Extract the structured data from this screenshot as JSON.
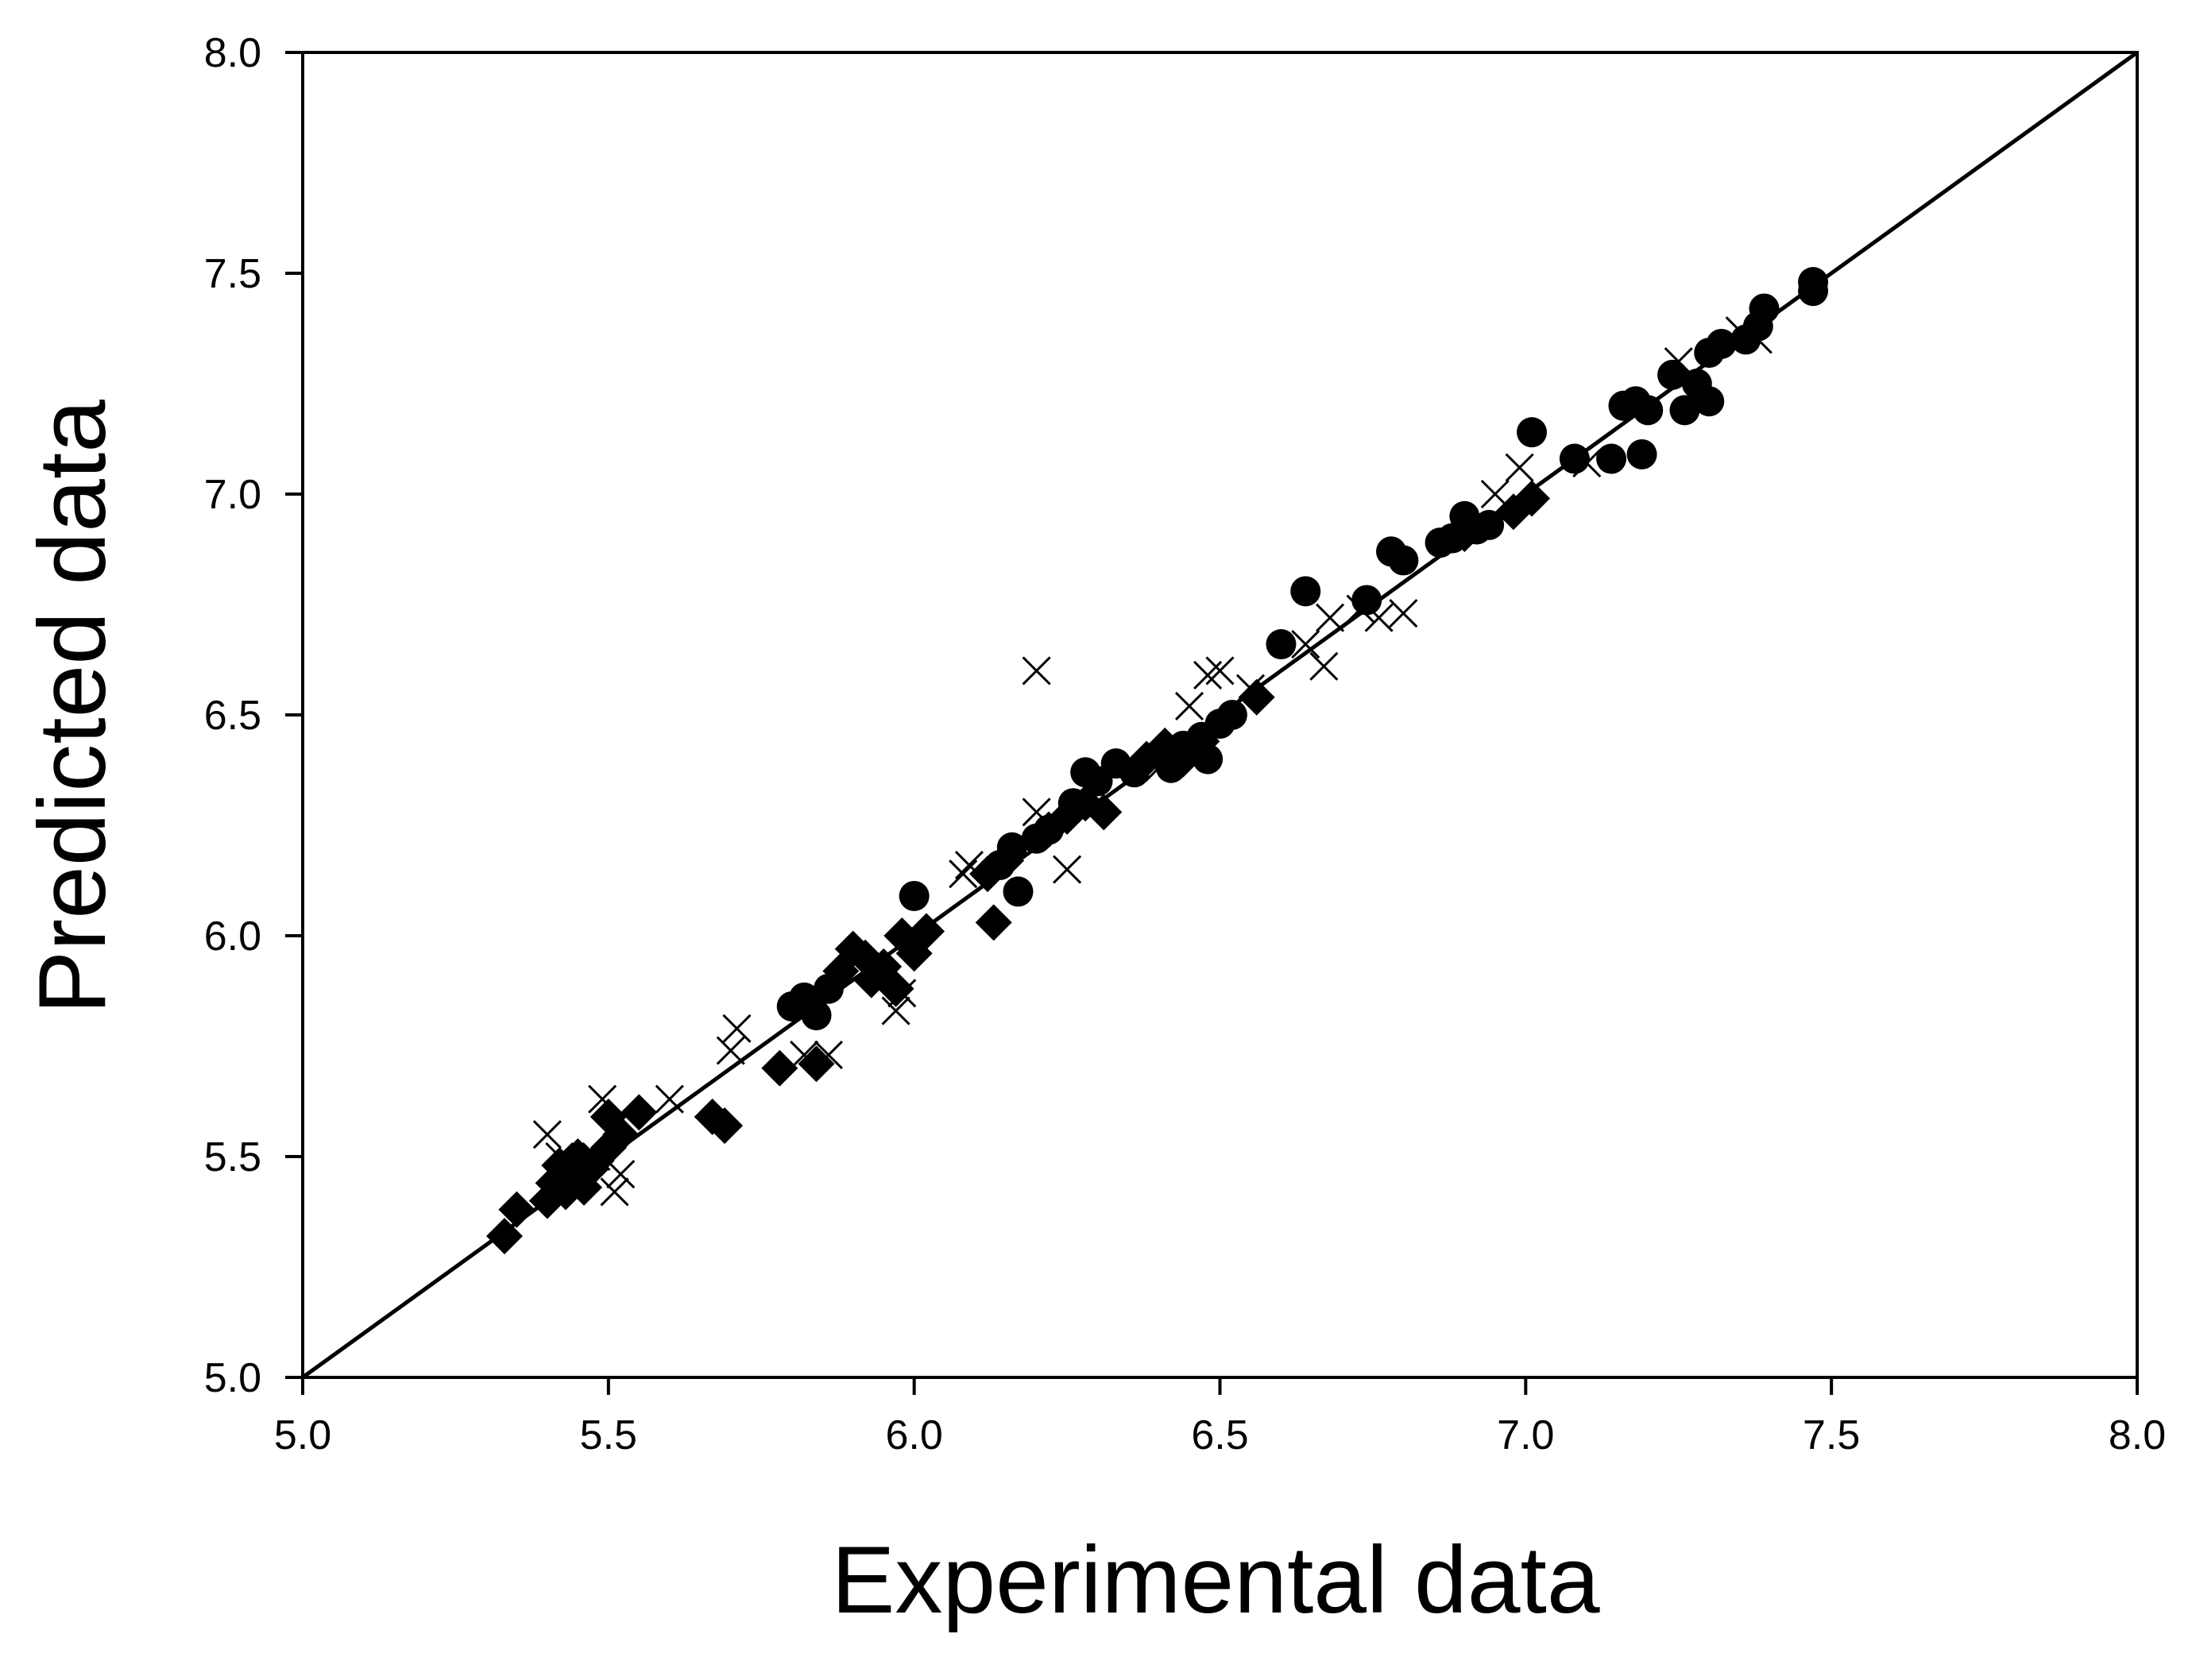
{
  "chart_data": {
    "type": "scatter",
    "title": "",
    "xlabel": "Experimental data",
    "ylabel": "Predicted data",
    "xlim": [
      5.0,
      8.0
    ],
    "ylim": [
      5.0,
      8.0
    ],
    "xticks": [
      "5.0",
      "5.5",
      "6.0",
      "6.5",
      "7.0",
      "7.5",
      "8.0"
    ],
    "yticks": [
      "5.0",
      "5.5",
      "6.0",
      "6.5",
      "7.0",
      "7.5",
      "8.0"
    ],
    "grid": false,
    "legend": "none",
    "reference_line": {
      "x": [
        5.0,
        8.0
      ],
      "y": [
        5.0,
        8.0
      ]
    },
    "series": [
      {
        "marker": "circle",
        "color": "#000000",
        "points": [
          [
            5.8,
            5.84
          ],
          [
            5.82,
            5.86
          ],
          [
            5.84,
            5.82
          ],
          [
            5.86,
            5.88
          ],
          [
            6.0,
            6.09
          ],
          [
            6.14,
            6.16
          ],
          [
            6.16,
            6.2
          ],
          [
            6.17,
            6.1
          ],
          [
            6.2,
            6.22
          ],
          [
            6.22,
            6.24
          ],
          [
            6.26,
            6.3
          ],
          [
            6.28,
            6.37
          ],
          [
            6.3,
            6.35
          ],
          [
            6.33,
            6.39
          ],
          [
            6.36,
            6.37
          ],
          [
            6.4,
            6.41
          ],
          [
            6.42,
            6.38
          ],
          [
            6.44,
            6.43
          ],
          [
            6.46,
            6.42
          ],
          [
            6.47,
            6.45
          ],
          [
            6.48,
            6.4
          ],
          [
            6.5,
            6.48
          ],
          [
            6.52,
            6.5
          ],
          [
            6.6,
            6.66
          ],
          [
            6.64,
            6.78
          ],
          [
            6.74,
            6.76
          ],
          [
            6.78,
            6.87
          ],
          [
            6.8,
            6.85
          ],
          [
            6.86,
            6.89
          ],
          [
            6.88,
            6.9
          ],
          [
            6.9,
            6.95
          ],
          [
            6.92,
            6.92
          ],
          [
            6.94,
            6.93
          ],
          [
            7.01,
            7.14
          ],
          [
            7.08,
            7.08
          ],
          [
            7.14,
            7.08
          ],
          [
            7.16,
            7.2
          ],
          [
            7.18,
            7.21
          ],
          [
            7.19,
            7.09
          ],
          [
            7.2,
            7.19
          ],
          [
            7.24,
            7.27
          ],
          [
            7.26,
            7.19
          ],
          [
            7.28,
            7.25
          ],
          [
            7.3,
            7.32
          ],
          [
            7.3,
            7.21
          ],
          [
            7.32,
            7.34
          ],
          [
            7.36,
            7.35
          ],
          [
            7.38,
            7.38
          ],
          [
            7.39,
            7.42
          ],
          [
            7.47,
            7.48
          ],
          [
            7.47,
            7.46
          ]
        ]
      },
      {
        "marker": "diamond",
        "color": "#000000",
        "points": [
          [
            5.33,
            5.32
          ],
          [
            5.35,
            5.38
          ],
          [
            5.4,
            5.4
          ],
          [
            5.41,
            5.44
          ],
          [
            5.42,
            5.48
          ],
          [
            5.43,
            5.42
          ],
          [
            5.44,
            5.45
          ],
          [
            5.45,
            5.5
          ],
          [
            5.46,
            5.43
          ],
          [
            5.47,
            5.47
          ],
          [
            5.48,
            5.49
          ],
          [
            5.5,
            5.52
          ],
          [
            5.5,
            5.59
          ],
          [
            5.52,
            5.55
          ],
          [
            5.55,
            5.6
          ],
          [
            5.67,
            5.59
          ],
          [
            5.69,
            5.57
          ],
          [
            5.78,
            5.7
          ],
          [
            5.84,
            5.71
          ],
          [
            5.88,
            5.92
          ],
          [
            5.9,
            5.97
          ],
          [
            5.92,
            5.95
          ],
          [
            5.93,
            5.9
          ],
          [
            5.95,
            5.93
          ],
          [
            5.97,
            5.88
          ],
          [
            5.98,
            6.0
          ],
          [
            6.0,
            5.96
          ],
          [
            6.02,
            6.01
          ],
          [
            6.12,
            6.14
          ],
          [
            6.13,
            6.03
          ],
          [
            6.15,
            6.17
          ],
          [
            6.22,
            6.24
          ],
          [
            6.25,
            6.27
          ],
          [
            6.28,
            6.3
          ],
          [
            6.31,
            6.28
          ],
          [
            6.38,
            6.4
          ],
          [
            6.41,
            6.43
          ],
          [
            6.44,
            6.4
          ],
          [
            6.47,
            6.44
          ],
          [
            6.56,
            6.54
          ],
          [
            6.9,
            6.91
          ],
          [
            6.98,
            6.96
          ],
          [
            7.01,
            6.99
          ]
        ]
      },
      {
        "marker": "x",
        "color": "#000000",
        "points": [
          [
            5.4,
            5.55
          ],
          [
            5.42,
            5.5
          ],
          [
            5.45,
            5.47
          ],
          [
            5.48,
            5.5
          ],
          [
            5.49,
            5.63
          ],
          [
            5.51,
            5.42
          ],
          [
            5.52,
            5.46
          ],
          [
            5.6,
            5.63
          ],
          [
            5.7,
            5.74
          ],
          [
            5.71,
            5.79
          ],
          [
            5.82,
            5.73
          ],
          [
            5.86,
            5.73
          ],
          [
            5.97,
            5.83
          ],
          [
            5.98,
            5.87
          ],
          [
            6.08,
            6.14
          ],
          [
            6.09,
            6.16
          ],
          [
            6.2,
            6.28
          ],
          [
            6.2,
            6.6
          ],
          [
            6.25,
            6.15
          ],
          [
            6.4,
            6.38
          ],
          [
            6.45,
            6.52
          ],
          [
            6.48,
            6.59
          ],
          [
            6.5,
            6.6
          ],
          [
            6.55,
            6.56
          ],
          [
            6.64,
            6.66
          ],
          [
            6.67,
            6.61
          ],
          [
            6.68,
            6.72
          ],
          [
            6.73,
            6.74
          ],
          [
            6.76,
            6.72
          ],
          [
            6.8,
            6.73
          ],
          [
            6.95,
            7.0
          ],
          [
            6.99,
            7.06
          ],
          [
            7.1,
            7.07
          ],
          [
            7.25,
            7.3
          ],
          [
            7.35,
            7.37
          ],
          [
            7.38,
            7.35
          ]
        ]
      }
    ]
  }
}
